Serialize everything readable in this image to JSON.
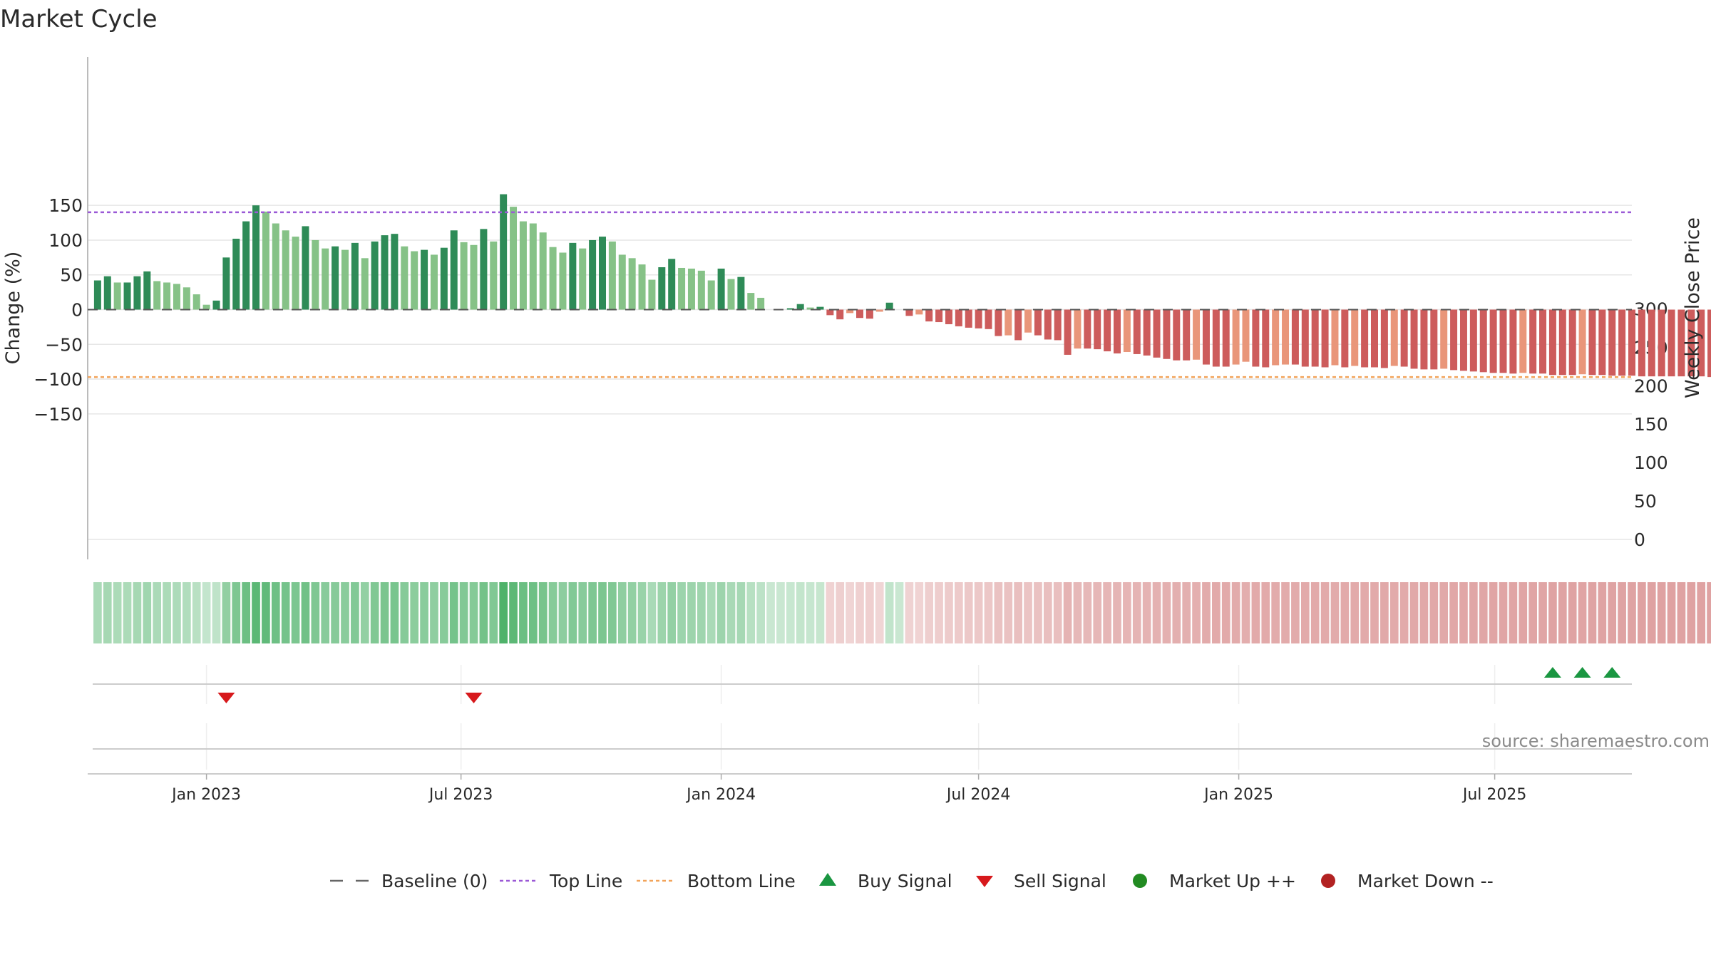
{
  "title": "Market Cycle",
  "source_note": "source: sharemaestro.com",
  "chart_data": {
    "type": "bar",
    "y_left": {
      "label": "Change (%)",
      "range": [
        -167,
        180
      ],
      "ticks": [
        -150,
        -100,
        -50,
        0,
        50,
        100,
        150
      ]
    },
    "y_right": {
      "label": "Weekly Close Price",
      "range": [
        0,
        300
      ],
      "ticks": [
        0,
        50,
        100,
        150,
        200,
        250,
        300
      ]
    },
    "x": {
      "range": [
        "2022-10-10",
        "2025-10-06"
      ],
      "tick_dates": [
        "2023-01-02",
        "2023-07-01",
        "2024-01-01",
        "2024-07-01",
        "2025-01-01",
        "2025-07-01"
      ],
      "tick_labels": [
        "Jan 2023",
        "Jul 2023",
        "Jan 2024",
        "Jul 2024",
        "Jan 2025",
        "Jul 2025"
      ]
    },
    "top_line": 140,
    "bottom_line": -97,
    "baseline": 0,
    "first_week": "2022-10-17",
    "values": [
      42,
      48,
      39,
      39,
      48,
      55,
      41,
      39,
      37,
      32,
      22,
      7,
      13,
      75,
      102,
      127,
      150,
      141,
      124,
      114,
      105,
      120,
      100,
      88,
      91,
      86,
      96,
      74,
      98,
      107,
      109,
      91,
      84,
      86,
      79,
      89,
      114,
      97,
      93,
      116,
      98,
      166,
      148,
      127,
      124,
      111,
      90,
      82,
      96,
      88,
      100,
      105,
      98,
      79,
      74,
      65,
      43,
      61,
      73,
      60,
      59,
      56,
      42,
      59,
      44,
      47,
      24,
      17,
      0,
      0,
      2,
      8,
      3,
      4,
      -8,
      -14,
      -5,
      -12,
      -13,
      -3,
      10,
      0,
      -9,
      -7,
      -17,
      -18,
      -21,
      -24,
      -26,
      -27,
      -28,
      -38,
      -37,
      -44,
      -33,
      -37,
      -43,
      -44,
      -65,
      -56,
      -56,
      -57,
      -60,
      -63,
      -61,
      -64,
      -66,
      -69,
      -71,
      -73,
      -73,
      -72,
      -79,
      -82,
      -82,
      -79,
      -75,
      -82,
      -83,
      -80,
      -79,
      -79,
      -82,
      -82,
      -83,
      -80,
      -83,
      -81,
      -83,
      -83,
      -84,
      -81,
      -82,
      -85,
      -86,
      -86,
      -85,
      -87,
      -88,
      -89,
      -90,
      -91,
      -91,
      -92,
      -91,
      -92,
      -92,
      -94,
      -94,
      -94,
      -93,
      -94,
      -94,
      -95,
      -95,
      -95,
      -96,
      -96,
      -96,
      -96,
      -96,
      -96,
      -96,
      -97,
      -97
    ],
    "strength_strip": true,
    "buy_signals": [
      "2025-08-11",
      "2025-09-01",
      "2025-09-22"
    ],
    "sell_signals": [
      "2023-01-16",
      "2023-07-10"
    ],
    "market_up": [],
    "market_down": [],
    "legend": [
      "Baseline (0)",
      "Top Line",
      "Bottom Line",
      "Buy Signal",
      "Sell Signal",
      "Market Up ++",
      "Market Down --"
    ],
    "legend_position": "bottom-center",
    "grid": true
  },
  "colors": {
    "pos_dark": "#2e8b57",
    "pos_light": "#86c287",
    "neg_dark": "#cd5c5c",
    "neg_light": "#e9967a",
    "top_line": "#9b59d6",
    "bottom_line": "#f2a45b",
    "buy": "#1a9641",
    "sell": "#d7191c",
    "market_up": "#228b22",
    "market_down": "#b22222",
    "grid": "#e6e6e6",
    "axis_text": "#2a2a2a",
    "source_text": "#8a8a8a",
    "baseline": "#555555"
  }
}
